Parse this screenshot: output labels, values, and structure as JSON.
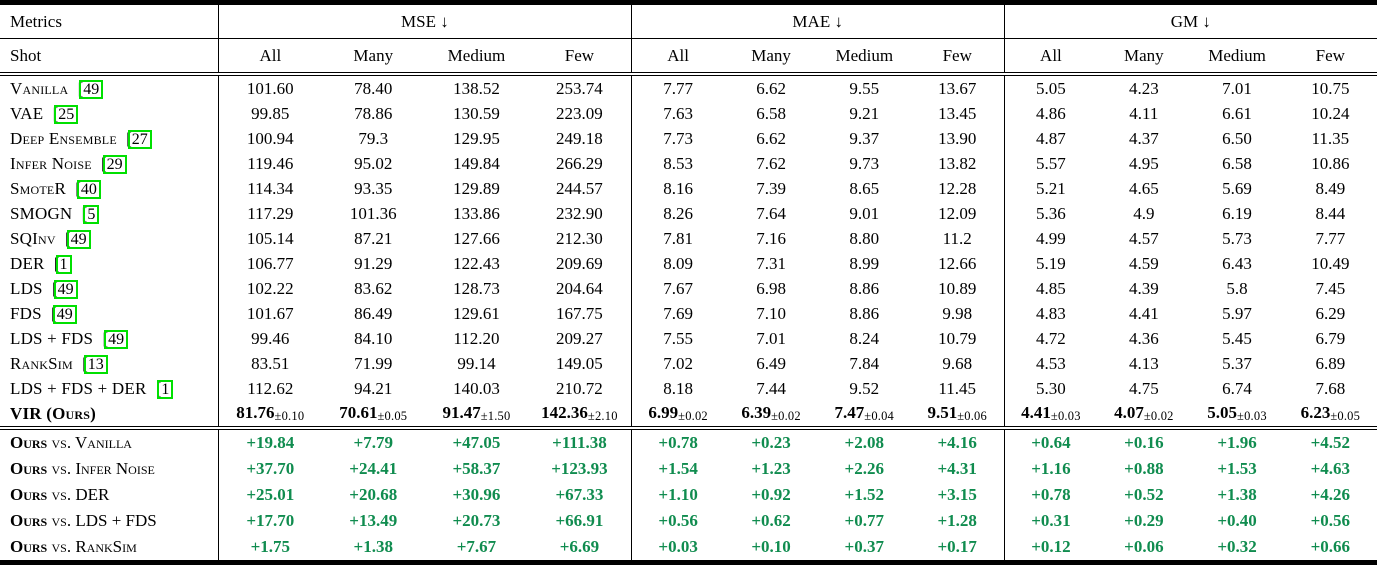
{
  "colors": {
    "positive_green": "#108c4f",
    "citation_box_green": "#00e000",
    "text": "#000000"
  },
  "table": {
    "cite_open": "[",
    "header": {
      "metrics_label": "Metrics",
      "shot_label": "Shot",
      "groups": [
        {
          "label": "MSE ↓"
        },
        {
          "label": "MAE ↓"
        },
        {
          "label": "GM ↓"
        }
      ],
      "subcolumns": [
        "All",
        "Many",
        "Medium",
        "Few"
      ]
    },
    "rows": [
      {
        "method": "Vanilla",
        "cite": "49",
        "values": [
          "101.60",
          "78.40",
          "138.52",
          "253.74",
          "7.77",
          "6.62",
          "9.55",
          "13.67",
          "5.05",
          "4.23",
          "7.01",
          "10.75"
        ]
      },
      {
        "method": "VAE",
        "cite": "25",
        "values": [
          "99.85",
          "78.86",
          "130.59",
          "223.09",
          "7.63",
          "6.58",
          "9.21",
          "13.45",
          "4.86",
          "4.11",
          "6.61",
          "10.24"
        ]
      },
      {
        "method": "Deep Ensemble",
        "cite": "27",
        "values": [
          "100.94",
          "79.3",
          "129.95",
          "249.18",
          "7.73",
          "6.62",
          "9.37",
          "13.90",
          "4.87",
          "4.37",
          "6.50",
          "11.35"
        ]
      },
      {
        "method": "Infer Noise",
        "cite": "29",
        "values": [
          "119.46",
          "95.02",
          "149.84",
          "266.29",
          "8.53",
          "7.62",
          "9.73",
          "13.82",
          "5.57",
          "4.95",
          "6.58",
          "10.86"
        ]
      },
      {
        "method": "SmoteR",
        "cite": "40",
        "values": [
          "114.34",
          "93.35",
          "129.89",
          "244.57",
          "8.16",
          "7.39",
          "8.65",
          "12.28",
          "5.21",
          "4.65",
          "5.69",
          "8.49"
        ]
      },
      {
        "method": "SMOGN",
        "cite": "5",
        "values": [
          "117.29",
          "101.36",
          "133.86",
          "232.90",
          "8.26",
          "7.64",
          "9.01",
          "12.09",
          "5.36",
          "4.9",
          "6.19",
          "8.44"
        ]
      },
      {
        "method": "SQInv",
        "cite": "49",
        "values": [
          "105.14",
          "87.21",
          "127.66",
          "212.30",
          "7.81",
          "7.16",
          "8.80",
          "11.2",
          "4.99",
          "4.57",
          "5.73",
          "7.77"
        ]
      },
      {
        "method": "DER",
        "cite": "1",
        "values": [
          "106.77",
          "91.29",
          "122.43",
          "209.69",
          "8.09",
          "7.31",
          "8.99",
          "12.66",
          "5.19",
          "4.59",
          "6.43",
          "10.49"
        ]
      },
      {
        "method": "LDS",
        "cite": "49",
        "values": [
          "102.22",
          "83.62",
          "128.73",
          "204.64",
          "7.67",
          "6.98",
          "8.86",
          "10.89",
          "4.85",
          "4.39",
          "5.8",
          "7.45"
        ]
      },
      {
        "method": "FDS",
        "cite": "49",
        "values": [
          "101.67",
          "86.49",
          "129.61",
          "167.75",
          "7.69",
          "7.10",
          "8.86",
          "9.98",
          "4.83",
          "4.41",
          "5.97",
          "6.29"
        ]
      },
      {
        "method": "LDS + FDS",
        "cite": "49",
        "values": [
          "99.46",
          "84.10",
          "112.20",
          "209.27",
          "7.55",
          "7.01",
          "8.24",
          "10.79",
          "4.72",
          "4.36",
          "5.45",
          "6.79"
        ]
      },
      {
        "method": "RankSim",
        "cite": "13",
        "values": [
          "83.51",
          "71.99",
          "99.14",
          "149.05",
          "7.02",
          "6.49",
          "7.84",
          "9.68",
          "4.53",
          "4.13",
          "5.37",
          "6.89"
        ]
      },
      {
        "method": "LDS + FDS + DER",
        "cite": "1",
        "values": [
          "112.62",
          "94.21",
          "140.03",
          "210.72",
          "8.18",
          "7.44",
          "9.52",
          "11.45",
          "5.30",
          "4.75",
          "6.74",
          "7.68"
        ]
      },
      {
        "method": "VIR (Ours)",
        "cite": null,
        "bold": true,
        "values": [
          "81.76",
          "70.61",
          "91.47",
          "142.36",
          "6.99",
          "6.39",
          "7.47",
          "9.51",
          "4.41",
          "4.07",
          "5.05",
          "6.23"
        ],
        "pm": [
          "±0.10",
          "±0.05",
          "±1.50",
          "±2.10",
          "±0.02",
          "±0.02",
          "±0.04",
          "±0.06",
          "±0.03",
          "±0.02",
          "±0.03",
          "±0.05"
        ]
      }
    ],
    "comparison_rows": [
      {
        "bold_part": "Ours",
        "rest": "vs. Vanilla",
        "values": [
          "+19.84",
          "+7.79",
          "+47.05",
          "+111.38",
          "+0.78",
          "+0.23",
          "+2.08",
          "+4.16",
          "+0.64",
          "+0.16",
          "+1.96",
          "+4.52"
        ]
      },
      {
        "bold_part": "Ours",
        "rest": "vs. Infer Noise",
        "values": [
          "+37.70",
          "+24.41",
          "+58.37",
          "+123.93",
          "+1.54",
          "+1.23",
          "+2.26",
          "+4.31",
          "+1.16",
          "+0.88",
          "+1.53",
          "+4.63"
        ]
      },
      {
        "bold_part": "Ours",
        "rest": "vs. DER",
        "values": [
          "+25.01",
          "+20.68",
          "+30.96",
          "+67.33",
          "+1.10",
          "+0.92",
          "+1.52",
          "+3.15",
          "+0.78",
          "+0.52",
          "+1.38",
          "+4.26"
        ]
      },
      {
        "bold_part": "Ours",
        "rest": "vs. LDS + FDS",
        "values": [
          "+17.70",
          "+13.49",
          "+20.73",
          "+66.91",
          "+0.56",
          "+0.62",
          "+0.77",
          "+1.28",
          "+0.31",
          "+0.29",
          "+0.40",
          "+0.56"
        ]
      },
      {
        "bold_part": "Ours",
        "rest": "vs. RankSim",
        "values": [
          "+1.75",
          "+1.38",
          "+7.67",
          "+6.69",
          "+0.03",
          "+0.10",
          "+0.37",
          "+0.17",
          "+0.12",
          "+0.06",
          "+0.32",
          "+0.66"
        ]
      }
    ]
  }
}
